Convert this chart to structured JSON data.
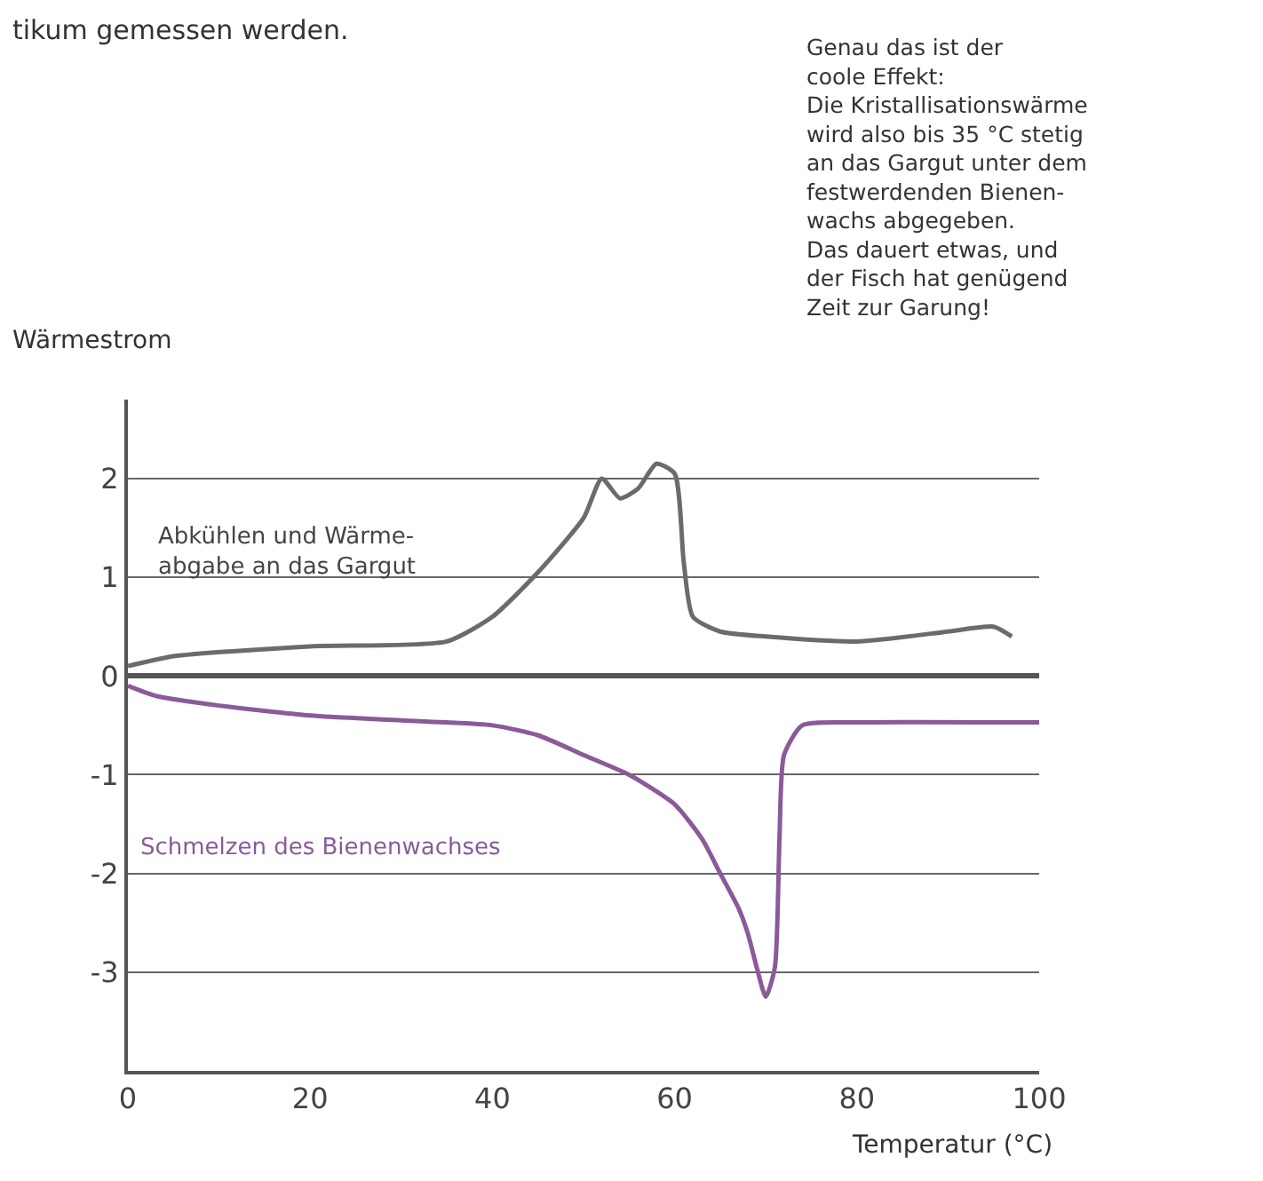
{
  "chart_data": {
    "type": "line",
    "xlabel": "Temperatur (°C)",
    "ylabel": "Wärmestrom",
    "annotations": [
      "tikum gemessen werden.",
      "Abkühlen und Wärme-\nabgabe an das Gargut",
      "Schmelzen des Bienenwachses",
      "Genau das ist der\ncoole Effekt:\nDie Kristallisationswärme\nwird also bis 35 °C stetig\nan das Gargut unter dem\nfestwerdenden Bienen-\nwachs abgegeben.\nDas dauert etwas, und\nder Fisch hat genügend\nZeit zur Garung!"
    ],
    "series": [
      {
        "color": "#6b6b6b",
        "x": [
          0,
          5,
          20,
          35,
          40,
          45,
          50,
          52,
          54,
          56,
          58,
          60,
          61,
          62,
          65,
          70,
          80,
          90,
          95,
          97
        ],
        "values": [
          0.1,
          0.2,
          0.3,
          0.35,
          0.6,
          1.05,
          1.6,
          2.0,
          1.8,
          1.9,
          2.15,
          2.05,
          1.15,
          0.6,
          0.45,
          0.4,
          0.35,
          0.45,
          0.5,
          0.4
        ]
      },
      {
        "color": "#8a5a9a",
        "x": [
          0,
          3,
          10,
          20,
          30,
          40,
          45,
          50,
          55,
          60,
          63,
          65,
          67,
          68,
          69,
          70,
          71,
          71.5,
          72,
          74,
          80,
          100
        ],
        "values": [
          -0.1,
          -0.2,
          -0.3,
          -0.4,
          -0.45,
          -0.5,
          -0.6,
          -0.8,
          -1.0,
          -1.3,
          -1.65,
          -2.0,
          -2.35,
          -2.6,
          -2.95,
          -3.25,
          -2.95,
          -1.65,
          -0.8,
          -0.5,
          -0.47,
          -0.47
        ]
      }
    ],
    "xlim": [
      0,
      100
    ],
    "xticks": [
      0,
      20,
      40,
      60,
      80,
      100
    ],
    "ylim": [
      -4,
      2.8
    ],
    "yticks": [
      -3,
      -2,
      -1,
      0,
      1,
      2
    ],
    "grid": "y",
    "marker": "none",
    "line_style": "solid"
  }
}
